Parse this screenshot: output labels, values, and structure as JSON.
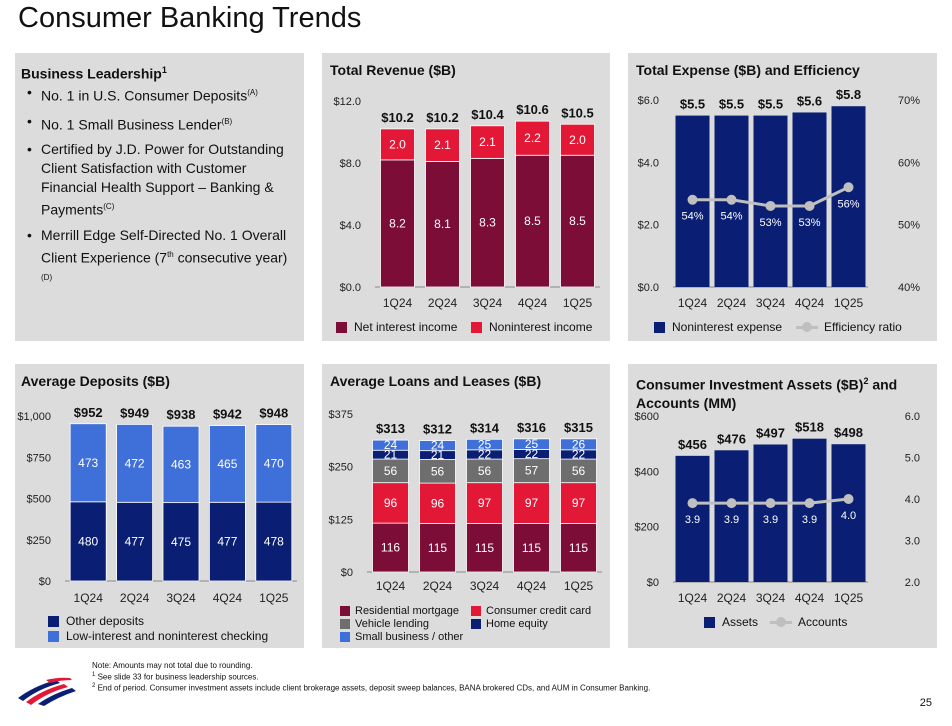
{
  "page_title": "Consumer Banking Trends",
  "leadership": {
    "title": "Business Leadership",
    "title_sup": "1",
    "items": [
      {
        "text": "No. 1 in U.S. Consumer Deposits",
        "sup": "(A)"
      },
      {
        "text": "No. 1 Small Business Lender",
        "sup": "(B)"
      },
      {
        "text": "Certified by J.D. Power for Outstanding Client Satisfaction with Customer Financial Health Support – Banking & Payments",
        "sup": "(C)"
      },
      {
        "text": "Merrill Edge Self-Directed No. 1 Overall Client Experience (7",
        "sup": "th",
        "text2": " consecutive year)",
        "sup2": "(D)"
      }
    ]
  },
  "chart_data": [
    {
      "id": "revenue",
      "type": "bar",
      "stacked": true,
      "title": "Total Revenue ($B)",
      "categories": [
        "1Q24",
        "2Q24",
        "3Q24",
        "4Q24",
        "1Q25"
      ],
      "ylim": [
        0,
        12
      ],
      "yticks": [
        0,
        4,
        8,
        12
      ],
      "ytick_labels": [
        "$0.0",
        "$4.0",
        "$8.0",
        "$12.0"
      ],
      "series": [
        {
          "name": "Net interest income",
          "values": [
            8.2,
            8.1,
            8.3,
            8.5,
            8.5
          ],
          "labels": [
            "8.2",
            "8.1",
            "8.3",
            "8.5",
            "8.5"
          ],
          "color": "#7b0d36"
        },
        {
          "name": "Noninterest income",
          "values": [
            2.0,
            2.1,
            2.1,
            2.2,
            2.0
          ],
          "labels": [
            "2.0",
            "2.1",
            "2.1",
            "2.2",
            "2.0"
          ],
          "color": "#e31837"
        }
      ],
      "totals": [
        "$10.2",
        "$10.2",
        "$10.4",
        "$10.6",
        "$10.5"
      ],
      "grid": false,
      "legend": "bottom"
    },
    {
      "id": "expense",
      "type": "bar",
      "title": "Total Expense ($B) and Efficiency",
      "categories": [
        "1Q24",
        "2Q24",
        "3Q24",
        "4Q24",
        "1Q25"
      ],
      "ylim": [
        0,
        6
      ],
      "yticks": [
        0,
        2,
        4,
        6
      ],
      "ytick_labels": [
        "$0.0",
        "$2.0",
        "$4.0",
        "$6.0"
      ],
      "y2lim": [
        40,
        70
      ],
      "y2ticks": [
        40,
        50,
        60,
        70
      ],
      "y2tick_labels": [
        "40%",
        "50%",
        "60%",
        "70%"
      ],
      "series": [
        {
          "name": "Noninterest expense",
          "values": [
            5.5,
            5.5,
            5.5,
            5.6,
            5.8
          ],
          "color": "#0a1f73"
        }
      ],
      "totals": [
        "$5.5",
        "$5.5",
        "$5.5",
        "$5.6",
        "$5.8"
      ],
      "line": {
        "name": "Efficiency ratio",
        "values": [
          54,
          54,
          53,
          53,
          56
        ],
        "labels": [
          "54%",
          "54%",
          "53%",
          "53%",
          "56%"
        ],
        "color": "#bfbfbf"
      },
      "grid": false,
      "legend": "bottom"
    },
    {
      "id": "deposits",
      "type": "bar",
      "stacked": true,
      "title": "Average Deposits ($B)",
      "categories": [
        "1Q24",
        "2Q24",
        "3Q24",
        "4Q24",
        "1Q25"
      ],
      "ylim": [
        0,
        1000
      ],
      "yticks": [
        0,
        250,
        500,
        750,
        1000
      ],
      "ytick_labels": [
        "$0",
        "$250",
        "$500",
        "$750",
        "$1,000"
      ],
      "series": [
        {
          "name": "Other deposits",
          "values": [
            480,
            477,
            475,
            477,
            478
          ],
          "labels": [
            "480",
            "477",
            "475",
            "477",
            "478"
          ],
          "color": "#0a1f73"
        },
        {
          "name": "Low-interest and noninterest checking",
          "values": [
            473,
            472,
            463,
            465,
            470
          ],
          "labels": [
            "473",
            "472",
            "463",
            "465",
            "470"
          ],
          "color": "#3f6fd8"
        }
      ],
      "totals": [
        "$952",
        "$949",
        "$938",
        "$942",
        "$948"
      ],
      "grid": false,
      "legend": "bottom"
    },
    {
      "id": "loans",
      "type": "bar",
      "stacked": true,
      "title": "Average Loans and Leases ($B)",
      "categories": [
        "1Q24",
        "2Q24",
        "3Q24",
        "4Q24",
        "1Q25"
      ],
      "ylim": [
        0,
        375
      ],
      "yticks": [
        0,
        125,
        250,
        375
      ],
      "ytick_labels": [
        "$0",
        "$125",
        "$250",
        "$375"
      ],
      "series": [
        {
          "name": "Residential mortgage",
          "values": [
            116,
            115,
            115,
            115,
            115
          ],
          "labels": [
            "116",
            "115",
            "115",
            "115",
            "115"
          ],
          "color": "#7b0d36"
        },
        {
          "name": "Consumer credit card",
          "values": [
            96,
            96,
            97,
            97,
            97
          ],
          "labels": [
            "96",
            "96",
            "97",
            "97",
            "97"
          ],
          "color": "#e31837"
        },
        {
          "name": "Vehicle lending",
          "values": [
            56,
            56,
            56,
            57,
            56
          ],
          "labels": [
            "56",
            "56",
            "56",
            "57",
            "56"
          ],
          "color": "#6e6e6e"
        },
        {
          "name": "Home equity",
          "values": [
            21,
            21,
            22,
            22,
            22
          ],
          "labels": [
            "21",
            "21",
            "22",
            "22",
            "22"
          ],
          "color": "#0a1f73"
        },
        {
          "name": "Small business / other",
          "values": [
            24,
            24,
            25,
            25,
            26
          ],
          "labels": [
            "24",
            "24",
            "25",
            "25",
            "26"
          ],
          "color": "#3f6fd8"
        }
      ],
      "totals": [
        "$313",
        "$312",
        "$314",
        "$316",
        "$315"
      ],
      "grid": false,
      "legend": "bottom"
    },
    {
      "id": "investment",
      "type": "bar",
      "title": "Consumer Investment Assets ($B)",
      "title_sup": "2",
      "title_rest": " and Accounts (MM)",
      "categories": [
        "1Q24",
        "2Q24",
        "3Q24",
        "4Q24",
        "1Q25"
      ],
      "ylim": [
        0,
        600
      ],
      "yticks": [
        0,
        200,
        400,
        600
      ],
      "ytick_labels": [
        "$0",
        "$200",
        "$400",
        "$600"
      ],
      "y2lim": [
        2,
        6
      ],
      "y2ticks": [
        2,
        3,
        4,
        5,
        6
      ],
      "y2tick_labels": [
        "2.0",
        "3.0",
        "4.0",
        "5.0",
        "6.0"
      ],
      "series": [
        {
          "name": "Assets",
          "values": [
            456,
            476,
            497,
            518,
            498
          ],
          "color": "#0a1f73"
        }
      ],
      "totals": [
        "$456",
        "$476",
        "$497",
        "$518",
        "$498"
      ],
      "line": {
        "name": "Accounts",
        "values": [
          3.9,
          3.9,
          3.9,
          3.9,
          4.0
        ],
        "labels": [
          "3.9",
          "3.9",
          "3.9",
          "3.9",
          "4.0"
        ],
        "color": "#bfbfbf"
      },
      "grid": false,
      "legend": "bottom"
    }
  ],
  "notes": {
    "line1": "Note: Amounts may not total due to rounding.",
    "line2_sup": "1",
    "line2": " See slide 33 for business leadership sources.",
    "line3_sup": "2",
    "line3": " End of period. Consumer investment assets include client brokerage assets, deposit sweep balances, BANA brokered CDs, and AUM in Consumer Banking."
  },
  "page_number": "25",
  "logo_icon": "flag-logo-icon"
}
